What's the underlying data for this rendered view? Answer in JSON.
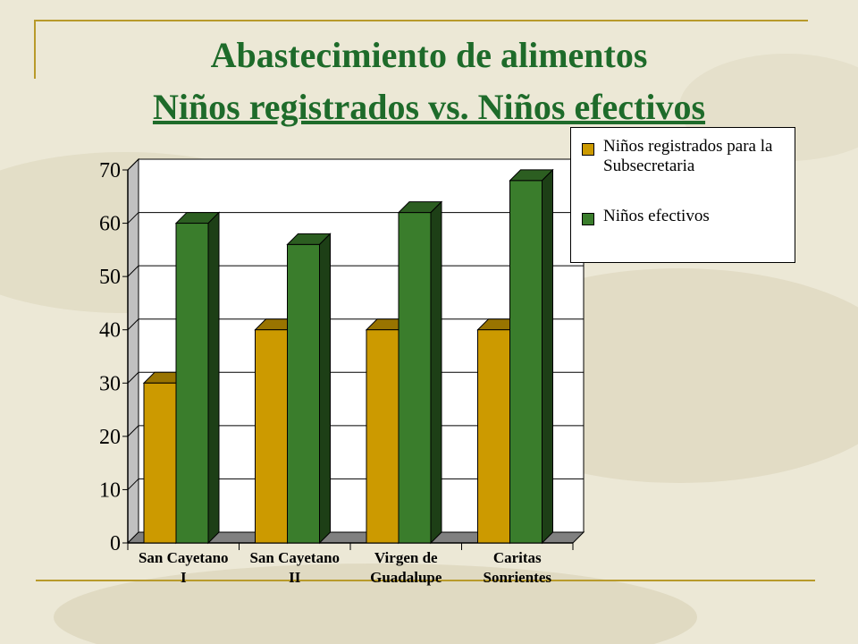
{
  "slide": {
    "title": "Abastecimiento de alimentos",
    "subtitle": "Niños registrados vs. Niños efectivos"
  },
  "colors": {
    "background": "#ece8d6",
    "accent_rule": "#b89a2b",
    "title": "#1e6b2a",
    "series_registrados": "#cc9a00",
    "series_efectivos": "#3a7d2c"
  },
  "chart_data": {
    "type": "bar",
    "style": "3d-clustered",
    "categories": [
      [
        "San Cayetano",
        "I"
      ],
      [
        "San Cayetano",
        "II"
      ],
      [
        "Virgen de",
        "Guadalupe"
      ],
      [
        "Caritas",
        "Sonrientes"
      ]
    ],
    "series": [
      {
        "name": "Niños registrados para la Subsecretaria",
        "values": [
          30,
          40,
          40,
          40
        ],
        "color": "#cc9a00"
      },
      {
        "name": "Niños efectivos",
        "values": [
          60,
          56,
          62,
          68
        ],
        "color": "#3a7d2c"
      }
    ],
    "y_ticks": [
      0,
      10,
      20,
      30,
      40,
      50,
      60,
      70
    ],
    "ylim": [
      0,
      70
    ],
    "grid": true,
    "legend_position": "top-right"
  },
  "legend": {
    "items": [
      {
        "label": "Niños registrados para la Subsecretaria",
        "color": "#cc9a00"
      },
      {
        "label": "Niños efectivos",
        "color": "#3a7d2c"
      }
    ]
  }
}
